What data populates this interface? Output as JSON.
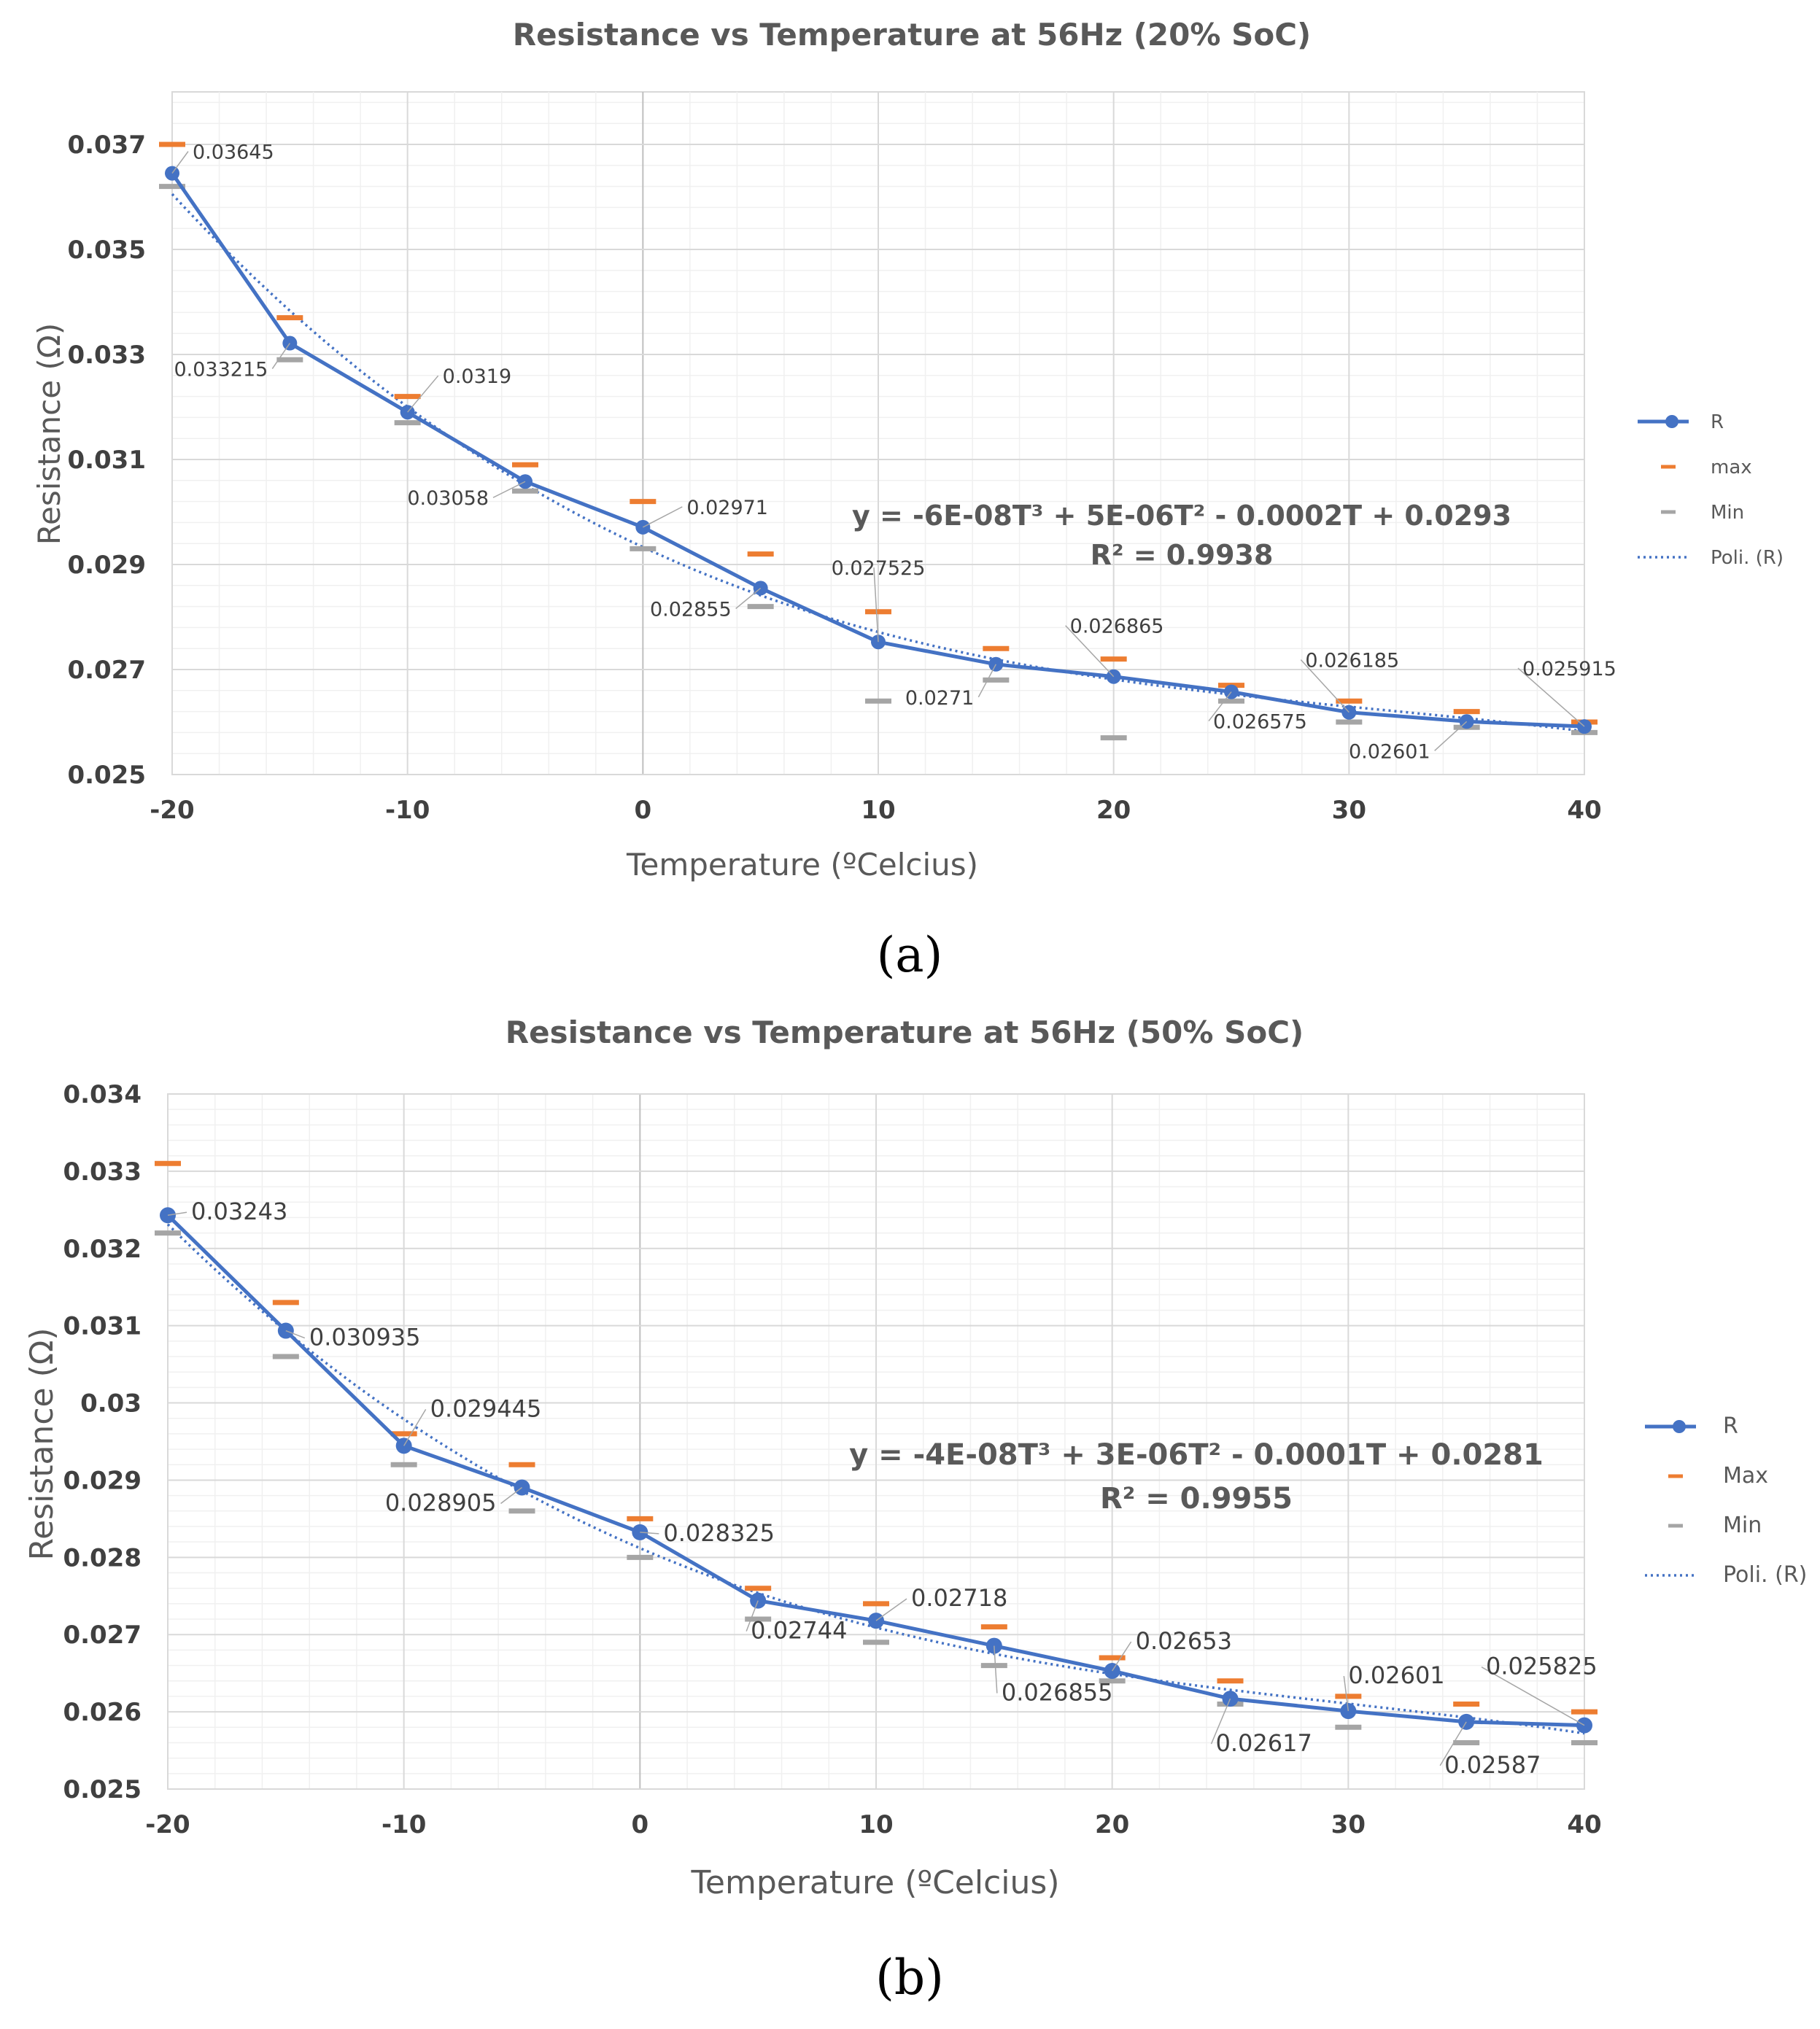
{
  "chart_data": [
    {
      "type": "line",
      "title": "Resistance vs Temperature at 56Hz (20% SoC)",
      "xlabel": "Temperature (ºCelcius)",
      "ylabel": "Resistance (Ω)",
      "xlim": [
        -20,
        40
      ],
      "ylim": [
        0.025,
        0.038
      ],
      "x_ticks": [
        "-20",
        "-10",
        "0",
        "10",
        "20",
        "30",
        "40"
      ],
      "x_tick_values": [
        -20,
        -10,
        0,
        10,
        20,
        30,
        40
      ],
      "y_ticks": [
        "0.025",
        "0.027",
        "0.029",
        "0.031",
        "0.033",
        "0.035",
        "0.037"
      ],
      "y_tick_values": [
        0.025,
        0.027,
        0.029,
        0.031,
        0.033,
        0.035,
        0.037
      ],
      "x": [
        -20,
        -15,
        -10,
        -5,
        0,
        5,
        10,
        15,
        20,
        25,
        30,
        35,
        40
      ],
      "series": [
        {
          "name": "R",
          "type": "line-marker",
          "color": "#4472c4",
          "values": [
            0.03645,
            0.033215,
            0.0319,
            0.03058,
            0.02971,
            0.02855,
            0.027525,
            0.0271,
            0.026865,
            0.026575,
            0.026185,
            0.02601,
            0.025915
          ]
        },
        {
          "name": "max",
          "type": "dash",
          "color": "#ed7d31",
          "values": [
            0.037,
            0.0337,
            0.0322,
            0.0309,
            0.0302,
            0.0292,
            0.0281,
            0.0274,
            0.0272,
            0.0267,
            0.0264,
            0.0262,
            0.026
          ]
        },
        {
          "name": "Min",
          "type": "dash",
          "color": "#a5a5a5",
          "values": [
            0.0362,
            0.0329,
            0.0317,
            0.0304,
            0.0293,
            0.0282,
            0.0264,
            0.0268,
            0.0257,
            0.0264,
            0.026,
            0.0259,
            0.0258
          ]
        },
        {
          "name": "Poli. (R)",
          "type": "trend",
          "color": "#4472c4"
        }
      ],
      "data_labels": [
        "0.03645",
        "0.033215",
        "0.0319",
        "0.03058",
        "0.02971",
        "0.02855",
        "0.027525",
        "0.0271",
        "0.026865",
        "0.026575",
        "0.026185",
        "0.02601",
        "0.025915"
      ],
      "equation": "y = -6E-08T³ + 5E-06T² - 0.0002T + 0.0293",
      "r_squared": "R² = 0.9938",
      "caption": "(a)"
    },
    {
      "type": "line",
      "title": "Resistance vs Temperature at 56Hz (50% SoC)",
      "xlabel": "Temperature (ºCelcius)",
      "ylabel": "Resistance (Ω)",
      "xlim": [
        -20,
        40
      ],
      "ylim": [
        0.025,
        0.034
      ],
      "x_ticks": [
        "-20",
        "-10",
        "0",
        "10",
        "20",
        "30",
        "40"
      ],
      "x_tick_values": [
        -20,
        -10,
        0,
        10,
        20,
        30,
        40
      ],
      "y_ticks": [
        "0.025",
        "0.026",
        "0.027",
        "0.028",
        "0.029",
        "0.03",
        "0.031",
        "0.032",
        "0.033",
        "0.034"
      ],
      "y_tick_values": [
        0.025,
        0.026,
        0.027,
        0.028,
        0.029,
        0.03,
        0.031,
        0.032,
        0.033,
        0.034
      ],
      "x": [
        -20,
        -15,
        -10,
        -5,
        0,
        5,
        10,
        15,
        20,
        25,
        30,
        35,
        40
      ],
      "series": [
        {
          "name": "R",
          "type": "line-marker",
          "color": "#4472c4",
          "values": [
            0.03243,
            0.030935,
            0.029445,
            0.028905,
            0.028325,
            0.02744,
            0.02718,
            0.026855,
            0.02653,
            0.02617,
            0.02601,
            0.02587,
            0.025825
          ]
        },
        {
          "name": "Max",
          "type": "dash",
          "color": "#ed7d31",
          "values": [
            0.0331,
            0.0313,
            0.0296,
            0.0292,
            0.0285,
            0.0276,
            0.0274,
            0.0271,
            0.0267,
            0.0264,
            0.0262,
            0.0261,
            0.026
          ]
        },
        {
          "name": "Min",
          "type": "dash",
          "color": "#a5a5a5",
          "values": [
            0.0322,
            0.0306,
            0.0292,
            0.0286,
            0.028,
            0.0272,
            0.0269,
            0.0266,
            0.0264,
            0.0261,
            0.0258,
            0.0256,
            0.0256
          ]
        },
        {
          "name": "Poli. (R)",
          "type": "trend",
          "color": "#4472c4"
        }
      ],
      "data_labels": [
        "0.03243",
        "0.030935",
        "0.029445",
        "0.028905",
        "0.028325",
        "0.02744",
        "0.02718",
        "0.026855",
        "0.02653",
        "0.02617",
        "0.02601",
        "0.02587",
        "0.025825"
      ],
      "equation": "y = -4E-08T³ + 3E-06T² - 0.0001T + 0.0281",
      "r_squared": "R² = 0.9955",
      "caption": "(b)"
    }
  ]
}
